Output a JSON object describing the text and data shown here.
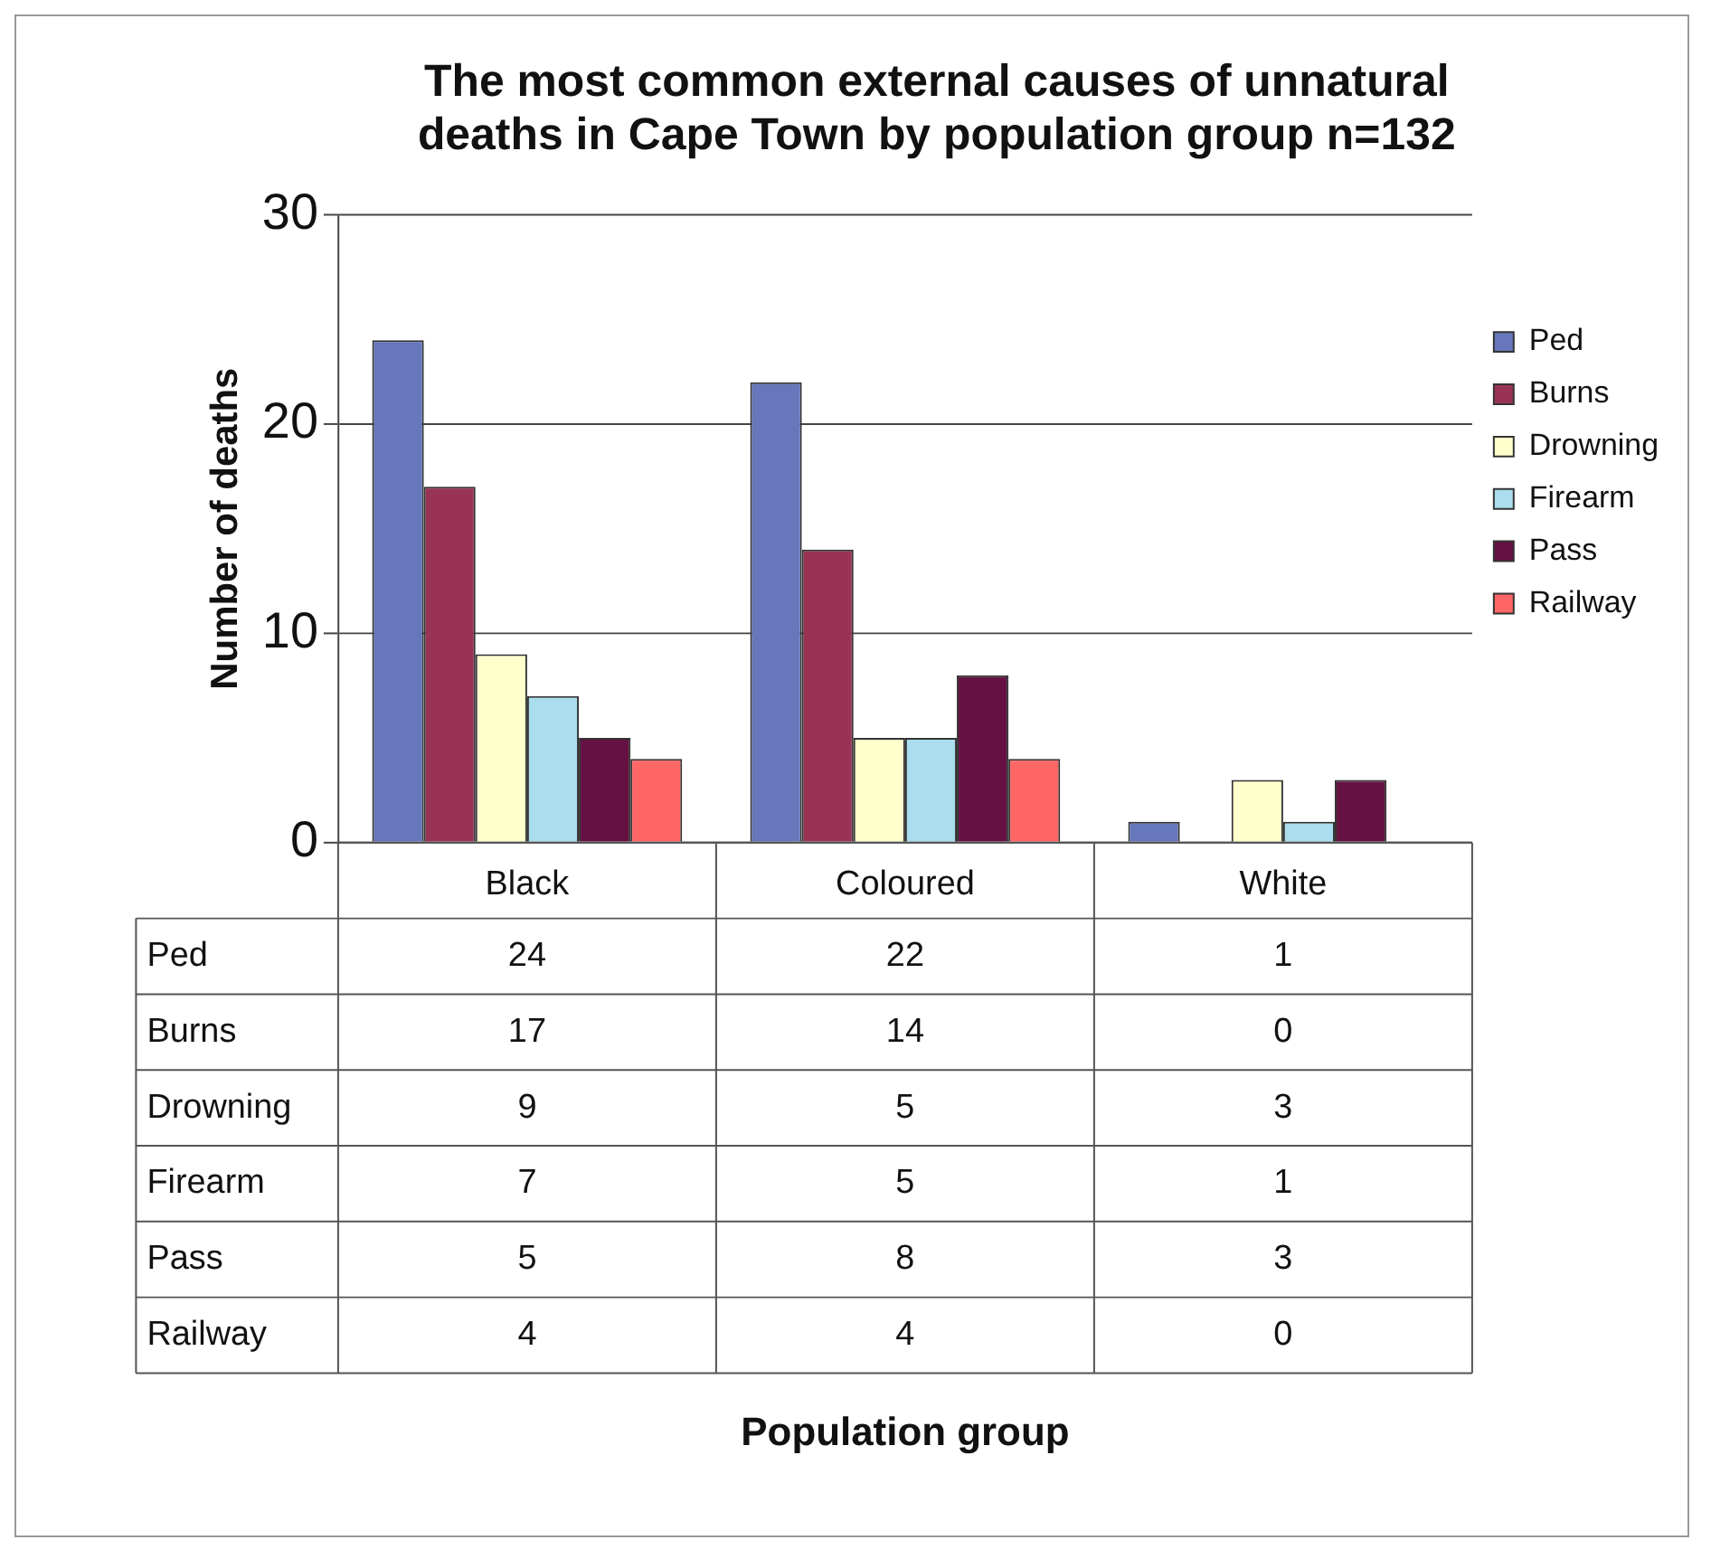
{
  "chart_data": {
    "type": "bar",
    "title": "The most common external causes of unnatural deaths in Cape Town by population group n=132",
    "annotations": [
      "Population group"
    ],
    "ylabel": "Number of deaths",
    "categories": [
      "Black",
      "Coloured",
      "White"
    ],
    "series": [
      {
        "name": "Ped",
        "color": "#6677bb",
        "values": [
          24,
          22,
          1
        ]
      },
      {
        "name": "Burns",
        "color": "#993355",
        "values": [
          17,
          14,
          0
        ]
      },
      {
        "name": "Drowning",
        "color": "#ffffcc",
        "values": [
          9,
          5,
          3
        ]
      },
      {
        "name": "Firearm",
        "color": "#aaddee",
        "values": [
          7,
          5,
          1
        ]
      },
      {
        "name": "Pass",
        "color": "#661144",
        "values": [
          5,
          8,
          3
        ]
      },
      {
        "name": "Railway",
        "color": "#ff6666",
        "values": [
          4,
          4,
          0
        ]
      }
    ],
    "ylim": [
      0,
      30
    ],
    "yticks": [
      0,
      10,
      20,
      30
    ],
    "grid": "y",
    "legend": "right",
    "data_labels": true
  }
}
